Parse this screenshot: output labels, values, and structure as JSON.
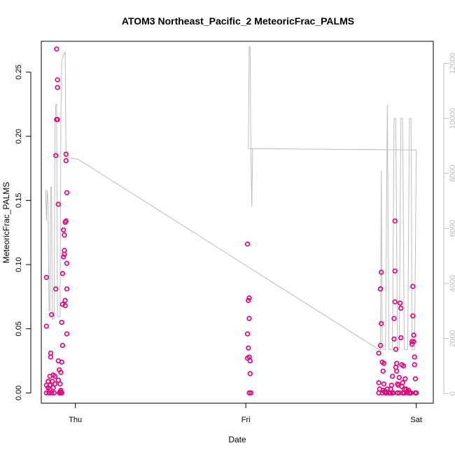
{
  "chart_data": {
    "type": "scatter",
    "title": "ATOM3 Northeast_Pacific_2 MeteoricFrac_PALMS",
    "xlabel": "Date",
    "ylabel": "MeteoricFrac_PALMS",
    "xlim": [
      -0.2,
      2.1
    ],
    "ylim": [
      -0.008,
      0.274
    ],
    "x_ticks": [
      {
        "value": 0,
        "label": "Thu"
      },
      {
        "value": 1,
        "label": "Fri"
      },
      {
        "value": 2,
        "label": "Sat"
      }
    ],
    "y_ticks": [
      0.0,
      0.05,
      0.1,
      0.15,
      0.2,
      0.25
    ],
    "y_tick_labels": [
      "0.00",
      "0.05",
      "0.10",
      "0.15",
      "0.20",
      "0.25"
    ],
    "y2_ticks": [
      0,
      2000,
      4000,
      6000,
      8000,
      10000,
      12000
    ],
    "y2_lim": [
      -350,
      12800
    ],
    "grid": false,
    "colors": {
      "points": "#e6007e",
      "altitude_line": "#bdbdbd",
      "axes": "#000000"
    },
    "series": [
      {
        "points": [
          [
            -0.17,
            0.09
          ],
          [
            -0.17,
            0.052
          ],
          [
            -0.17,
            0.006
          ],
          [
            -0.17,
            0.0
          ],
          [
            -0.16,
            0.004
          ],
          [
            -0.16,
            0.009
          ],
          [
            -0.155,
            0.0
          ],
          [
            -0.15,
            0.006
          ],
          [
            -0.15,
            0.003
          ],
          [
            -0.15,
            0.013
          ],
          [
            -0.145,
            0.031
          ],
          [
            -0.145,
            0.028
          ],
          [
            -0.14,
            0.061
          ],
          [
            -0.14,
            0.0
          ],
          [
            -0.135,
            0.009
          ],
          [
            -0.13,
            0.004
          ],
          [
            -0.13,
            0.014
          ],
          [
            -0.125,
            0.0
          ],
          [
            -0.12,
            0.013
          ],
          [
            -0.12,
            0.007
          ],
          [
            -0.115,
            0.081
          ],
          [
            -0.115,
            0.185
          ],
          [
            -0.11,
            0.268
          ],
          [
            -0.11,
            0.213
          ],
          [
            -0.105,
            0.238
          ],
          [
            -0.105,
            0.244
          ],
          [
            -0.105,
            0.213
          ],
          [
            -0.1,
            0.147
          ],
          [
            -0.1,
            0.01
          ],
          [
            -0.1,
            0.025
          ],
          [
            -0.095,
            0.018
          ],
          [
            -0.095,
            0.0
          ],
          [
            -0.09,
            0.007
          ],
          [
            -0.09,
            0.001
          ],
          [
            -0.085,
            0.002
          ],
          [
            -0.085,
            0.016
          ],
          [
            -0.085,
            0.0
          ],
          [
            -0.08,
            0.024
          ],
          [
            -0.08,
            0.055
          ],
          [
            -0.08,
            0.0
          ],
          [
            -0.075,
            0.037
          ],
          [
            -0.075,
            0.069
          ],
          [
            -0.075,
            0.093
          ],
          [
            -0.07,
            0.106
          ],
          [
            -0.07,
            0.127
          ],
          [
            -0.065,
            0.123
          ],
          [
            -0.065,
            0.111
          ],
          [
            -0.065,
            0.108
          ],
          [
            -0.06,
            0.068
          ],
          [
            -0.06,
            0.072
          ],
          [
            -0.06,
            0.133
          ],
          [
            -0.055,
            0.134
          ],
          [
            -0.055,
            0.186
          ],
          [
            -0.055,
            0.181
          ],
          [
            -0.05,
            0.156
          ],
          [
            -0.05,
            0.101
          ],
          [
            -0.05,
            0.081
          ],
          [
            -0.05,
            0.046
          ],
          [
            1.01,
            0.116
          ],
          [
            1.015,
            0.072
          ],
          [
            1.02,
            0.074
          ],
          [
            1.02,
            0.058
          ],
          [
            1.01,
            0.046
          ],
          [
            1.015,
            0.035
          ],
          [
            1.01,
            0.027
          ],
          [
            1.02,
            0.028
          ],
          [
            1.025,
            0.025
          ],
          [
            1.025,
            0.015
          ],
          [
            1.02,
            0.0
          ],
          [
            1.03,
            0.0
          ],
          [
            1.78,
            0.031
          ],
          [
            1.78,
            0.008
          ],
          [
            1.78,
            0.0
          ],
          [
            1.785,
            0.003
          ],
          [
            1.79,
            0.037
          ],
          [
            1.79,
            0.081
          ],
          [
            1.79,
            0.081
          ],
          [
            1.795,
            0.094
          ],
          [
            1.795,
            0.054
          ],
          [
            1.8,
            0.024
          ],
          [
            1.8,
            0.0
          ],
          [
            1.805,
            0.002
          ],
          [
            1.805,
            0.017
          ],
          [
            1.81,
            0.023
          ],
          [
            1.81,
            0.007
          ],
          [
            1.815,
            0.001
          ],
          [
            1.82,
            0.001
          ],
          [
            1.82,
            0.0
          ],
          [
            1.825,
            0.0
          ],
          [
            1.83,
            0.003
          ],
          [
            1.84,
            0.0
          ],
          [
            1.845,
            0.0
          ],
          [
            1.85,
            0.003
          ],
          [
            1.85,
            0.0
          ],
          [
            1.855,
            0.006
          ],
          [
            1.86,
            0.013
          ],
          [
            1.86,
            0.0
          ],
          [
            1.865,
            0.0
          ],
          [
            1.87,
            0.042
          ],
          [
            1.87,
            0.058
          ],
          [
            1.875,
            0.071
          ],
          [
            1.875,
            0.134
          ],
          [
            1.875,
            0.095
          ],
          [
            1.88,
            0.034
          ],
          [
            1.88,
            0.02
          ],
          [
            1.885,
            0.023
          ],
          [
            1.885,
            0.017
          ],
          [
            1.89,
            0.007
          ],
          [
            1.89,
            0.0
          ],
          [
            1.895,
            0.006
          ],
          [
            1.9,
            0.012
          ],
          [
            1.9,
            0.0
          ],
          [
            1.905,
            0.07
          ],
          [
            1.91,
            0.066
          ],
          [
            1.91,
            0.043
          ],
          [
            1.915,
            0.022
          ],
          [
            1.915,
            0.005
          ],
          [
            1.92,
            0.008
          ],
          [
            1.92,
            0.0
          ],
          [
            1.925,
            0.021
          ],
          [
            1.93,
            0.003
          ],
          [
            1.93,
            0.0
          ],
          [
            1.935,
            0.011
          ],
          [
            1.94,
            0.003
          ],
          [
            1.945,
            0.0
          ],
          [
            1.95,
            0.001
          ],
          [
            1.955,
            0.002
          ],
          [
            1.96,
            0.0
          ],
          [
            1.965,
            0.0
          ],
          [
            1.97,
            0.0
          ],
          [
            1.975,
            0.038
          ],
          [
            1.975,
            0.04
          ],
          [
            1.98,
            0.083
          ],
          [
            1.98,
            0.06
          ],
          [
            1.985,
            0.045
          ],
          [
            1.985,
            0.04
          ],
          [
            1.99,
            0.028
          ],
          [
            1.99,
            0.022
          ],
          [
            1.995,
            0.011
          ],
          [
            1.995,
            0.0
          ],
          [
            2.0,
            0.0
          ]
        ]
      },
      {
        "axis": "right",
        "points": [
          [
            -0.175,
            7400
          ],
          [
            -0.17,
            6300
          ],
          [
            -0.165,
            7400
          ],
          [
            -0.16,
            6900
          ],
          [
            -0.155,
            3000
          ],
          [
            -0.15,
            3000
          ],
          [
            -0.145,
            7500
          ],
          [
            -0.14,
            7500
          ],
          [
            -0.135,
            2700
          ],
          [
            -0.125,
            2700
          ],
          [
            -0.12,
            9500
          ],
          [
            -0.115,
            10500
          ],
          [
            -0.11,
            10500
          ],
          [
            -0.105,
            2800
          ],
          [
            -0.09,
            2800
          ],
          [
            -0.085,
            10000
          ],
          [
            -0.08,
            12100
          ],
          [
            -0.07,
            12300
          ],
          [
            -0.06,
            12400
          ],
          [
            -0.055,
            8600
          ],
          [
            0.02,
            8500
          ],
          [
            1.78,
            1600
          ],
          [
            1.79,
            1600
          ],
          [
            1.795,
            8100
          ],
          [
            1.8,
            1600
          ],
          [
            1.82,
            1600
          ],
          [
            1.83,
            10500
          ],
          [
            1.84,
            1600
          ],
          [
            1.86,
            1600
          ],
          [
            1.87,
            10000
          ],
          [
            1.88,
            10000
          ],
          [
            1.89,
            1600
          ],
          [
            1.9,
            1600
          ],
          [
            1.91,
            10000
          ],
          [
            1.92,
            10000
          ],
          [
            1.93,
            1600
          ],
          [
            1.95,
            1600
          ],
          [
            1.96,
            10000
          ],
          [
            1.97,
            10000
          ],
          [
            1.975,
            1600
          ],
          [
            1.99,
            1600
          ],
          [
            2.0,
            8850
          ],
          [
            1.015,
            8900
          ],
          [
            1.02,
            12600
          ],
          [
            1.025,
            12600
          ],
          [
            1.03,
            8700
          ],
          [
            1.035,
            6800
          ],
          [
            1.04,
            8900
          ],
          [
            2.0,
            8850
          ]
        ]
      }
    ]
  }
}
